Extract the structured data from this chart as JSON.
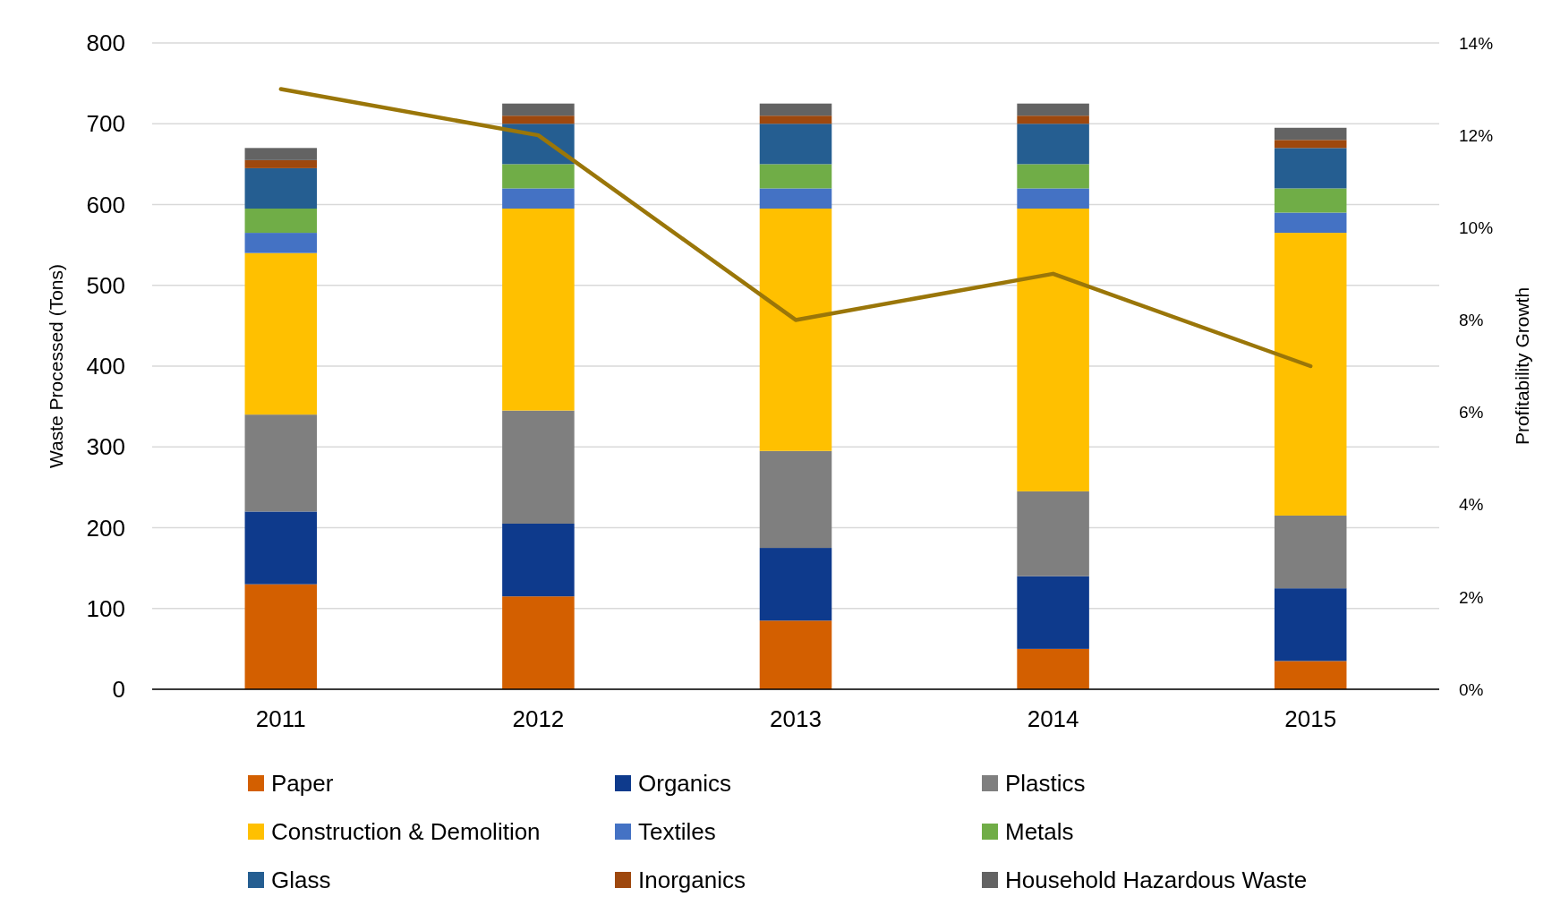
{
  "chart_data": {
    "type": "bar",
    "stacked": true,
    "categories": [
      "2011",
      "2012",
      "2013",
      "2014",
      "2015"
    ],
    "ylabel": "Waste Processed (Tons)",
    "y2label": "Profitability Growth",
    "ylim": [
      0,
      800
    ],
    "yticks": [
      0,
      100,
      200,
      300,
      400,
      500,
      600,
      700,
      800
    ],
    "y2lim": [
      0,
      14
    ],
    "y2ticks": [
      {
        "value": 0,
        "label": "0%"
      },
      {
        "value": 2,
        "label": "2%"
      },
      {
        "value": 4,
        "label": "4%"
      },
      {
        "value": 6,
        "label": "6%"
      },
      {
        "value": 8,
        "label": "8%"
      },
      {
        "value": 10,
        "label": "10%"
      },
      {
        "value": 12,
        "label": "12%"
      },
      {
        "value": 14,
        "label": "14%"
      }
    ],
    "grid": "y",
    "legend": "bottom",
    "series": [
      {
        "name": "Paper",
        "color": "#d35f00",
        "values": [
          130,
          115,
          85,
          50,
          35
        ]
      },
      {
        "name": "Organics",
        "color": "#0e3a8c",
        "values": [
          90,
          90,
          90,
          90,
          90
        ]
      },
      {
        "name": "Plastics",
        "color": "#7f7f7f",
        "values": [
          120,
          140,
          120,
          105,
          90
        ]
      },
      {
        "name": "Construction & Demolition",
        "color": "#ffc000",
        "values": [
          200,
          250,
          300,
          350,
          350
        ]
      },
      {
        "name": "Textiles",
        "color": "#4472c4",
        "values": [
          25,
          25,
          25,
          25,
          25
        ]
      },
      {
        "name": "Metals",
        "color": "#70ad47",
        "values": [
          30,
          30,
          30,
          30,
          30
        ]
      },
      {
        "name": "Glass",
        "color": "#255e91",
        "values": [
          50,
          50,
          50,
          50,
          50
        ]
      },
      {
        "name": "Inorganics",
        "color": "#9e480e",
        "values": [
          10,
          10,
          10,
          10,
          10
        ]
      },
      {
        "name": "Household Hazardous Waste",
        "color": "#636363",
        "values": [
          15,
          15,
          15,
          15,
          15
        ]
      },
      {
        "type": "line",
        "axis": "y2",
        "color": "#9a7609",
        "values": [
          13,
          12,
          8,
          9,
          7
        ]
      }
    ]
  }
}
